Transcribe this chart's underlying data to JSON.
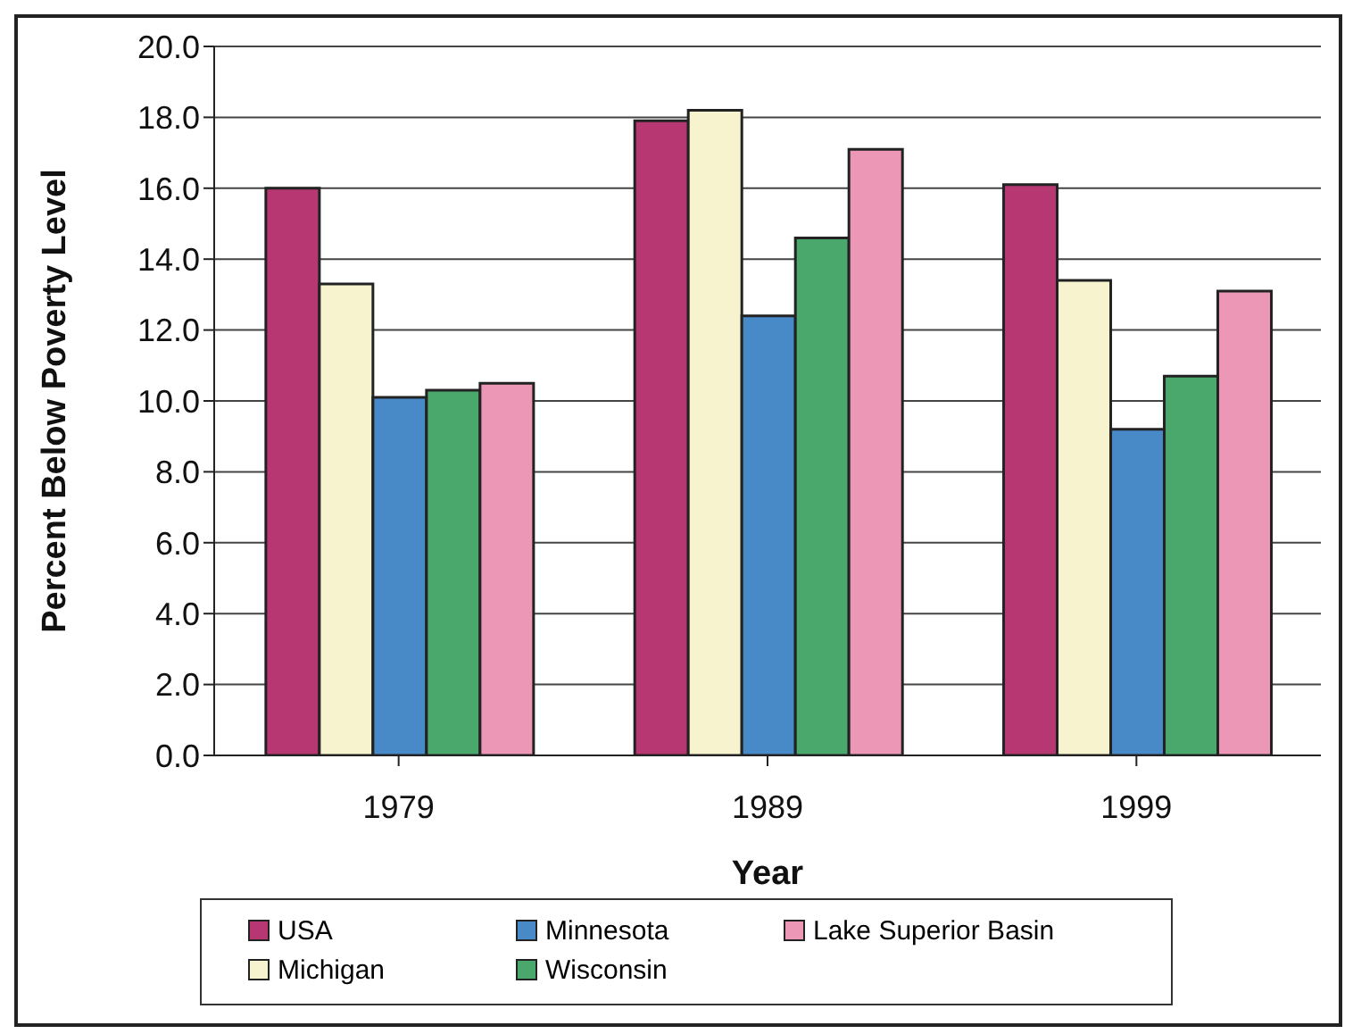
{
  "chart_data": {
    "type": "bar",
    "xlabel": "Year",
    "ylabel": "Percent Below Poverty Level",
    "categories": [
      "1979",
      "1989",
      "1999"
    ],
    "series": [
      {
        "name": "USA",
        "color": "#b73772",
        "values": [
          16.0,
          17.9,
          16.1
        ]
      },
      {
        "name": "Michigan",
        "color": "#f8f3cf",
        "values": [
          13.3,
          18.2,
          13.4
        ]
      },
      {
        "name": "Minnesota",
        "color": "#4889c7",
        "values": [
          10.1,
          12.4,
          9.2
        ]
      },
      {
        "name": "Wisconsin",
        "color": "#4aa86d",
        "values": [
          10.3,
          14.6,
          10.7
        ]
      },
      {
        "name": "Lake Superior Basin",
        "color": "#ed97b7",
        "values": [
          10.5,
          17.1,
          13.1
        ]
      }
    ],
    "ylim": [
      0,
      20
    ],
    "yticks": [
      {
        "value": 0,
        "label": "0.0"
      },
      {
        "value": 2,
        "label": "2.0"
      },
      {
        "value": 4,
        "label": "4.0"
      },
      {
        "value": 6,
        "label": "6.0"
      },
      {
        "value": 8,
        "label": "8.0"
      },
      {
        "value": 10,
        "label": "10.0"
      },
      {
        "value": 12,
        "label": "12.0"
      },
      {
        "value": 14,
        "label": "14.0"
      },
      {
        "value": 16,
        "label": "16.0"
      },
      {
        "value": 18,
        "label": "18.0"
      },
      {
        "value": 20,
        "label": "20.0"
      }
    ],
    "grid": "y",
    "legend": "bottom"
  }
}
